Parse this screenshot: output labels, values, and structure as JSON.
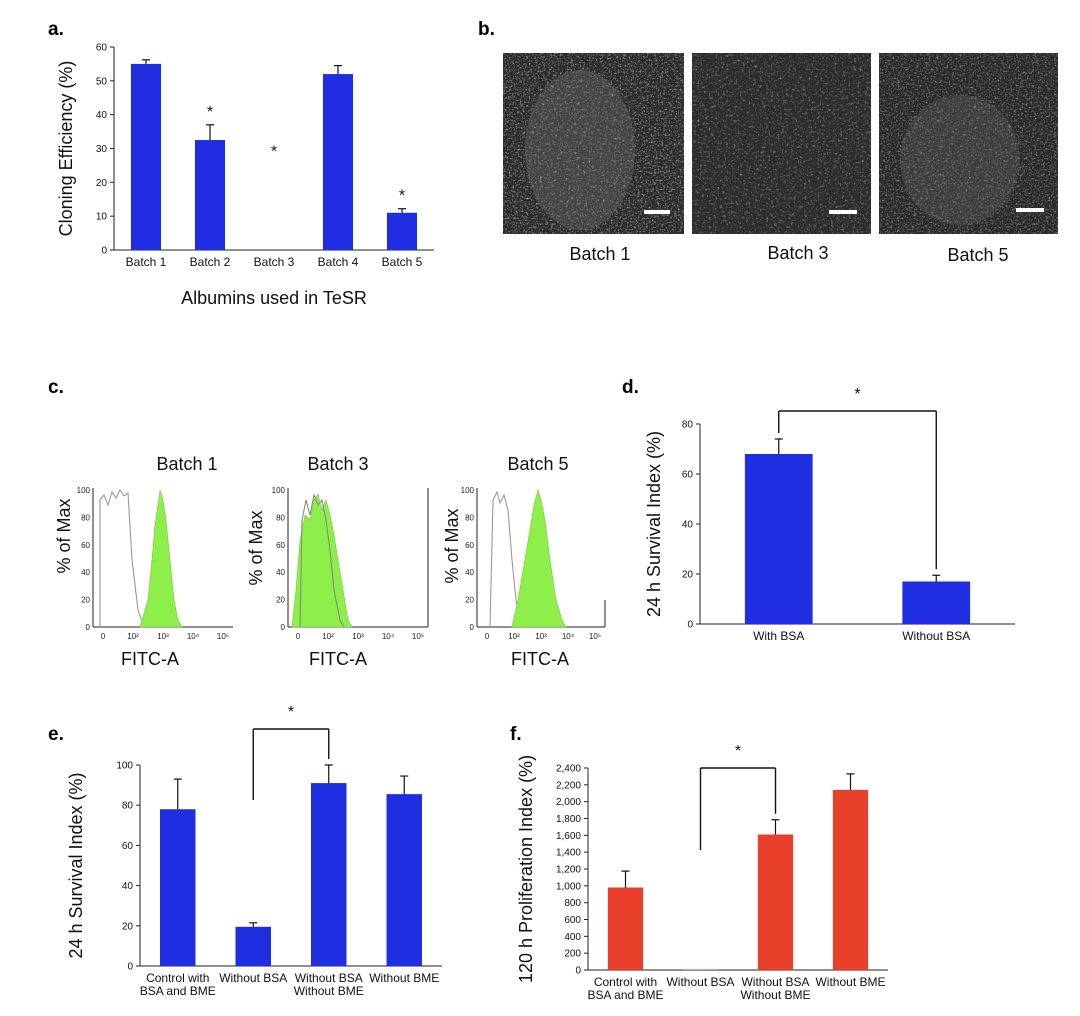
{
  "colors": {
    "blue": "#1f2ee0",
    "red": "#e8402a",
    "green": "#8fef4a",
    "grey": "#888888"
  },
  "panel_labels": {
    "a": "a.",
    "b": "b.",
    "c": "c.",
    "d": "d.",
    "e": "e.",
    "f": "f."
  },
  "micrographs": [
    {
      "label": "Batch 1"
    },
    {
      "label": "Batch 3"
    },
    {
      "label": "Batch 5"
    }
  ],
  "chart_data": [
    {
      "id": "a",
      "type": "bar",
      "title": "",
      "ylabel": "Cloning Efficiency (%)",
      "xlabel": "Albumins used in TeSR",
      "categories": [
        "Batch 1",
        "Batch 2",
        "Batch 3",
        "Batch 4",
        "Batch 5"
      ],
      "values": [
        55,
        32.5,
        0,
        52,
        11
      ],
      "errors": [
        1.2,
        4.5,
        0,
        2.5,
        1.2
      ],
      "significant": [
        false,
        true,
        true,
        false,
        true
      ],
      "ylim": [
        0,
        60
      ],
      "yticks": [
        "0",
        "10",
        "20",
        "30",
        "40",
        "50",
        "60"
      ],
      "color": "#1f2ee0"
    },
    {
      "id": "c",
      "type": "histogram",
      "xlabel": "FITC-A",
      "ylabel": "% of Max",
      "panels": [
        {
          "title": "Batch 1"
        },
        {
          "title": "Batch 3"
        },
        {
          "title": "Batch 5"
        }
      ],
      "yticks": [
        "0",
        "20",
        "40",
        "60",
        "80",
        "100"
      ],
      "xticks": [
        "0",
        "10²",
        "10³",
        "10⁴",
        "10⁵"
      ],
      "series": [
        {
          "name": "control",
          "style": "grey outline"
        },
        {
          "name": "stained",
          "style": "green filled"
        }
      ]
    },
    {
      "id": "d",
      "type": "bar",
      "ylabel": "24 h Survival Index (%)",
      "categories": [
        "With BSA",
        "Without BSA"
      ],
      "values": [
        68,
        17
      ],
      "errors": [
        6,
        2.5
      ],
      "ylim": [
        0,
        80
      ],
      "yticks": [
        "0",
        "20",
        "40",
        "60",
        "80"
      ],
      "color": "#1f2ee0",
      "comparison": {
        "from": 0,
        "to": 1,
        "label": "*"
      }
    },
    {
      "id": "e",
      "type": "bar",
      "ylabel": "24 h Survival Index (%)",
      "categories": [
        [
          "Control with",
          "BSA and BME"
        ],
        [
          "Without BSA"
        ],
        [
          "Without BSA",
          "Without BME"
        ],
        [
          "Without BME"
        ]
      ],
      "values": [
        78,
        19.5,
        91,
        85.5
      ],
      "errors": [
        15,
        2,
        9,
        9
      ],
      "ylim": [
        0,
        100
      ],
      "yticks": [
        "0",
        "20",
        "40",
        "60",
        "80",
        "100"
      ],
      "color": "#1f2ee0",
      "comparison": {
        "from": 1,
        "to": 2,
        "label": "*"
      }
    },
    {
      "id": "f",
      "type": "bar",
      "ylabel": "120 h Proliferation Index (%)",
      "categories": [
        [
          "Control with",
          "BSA and BME"
        ],
        [
          "Without BSA"
        ],
        [
          "Without BSA",
          "Without BME"
        ],
        [
          "Without BME"
        ]
      ],
      "values": [
        980,
        5,
        1610,
        2140
      ],
      "errors": [
        195,
        0,
        175,
        190
      ],
      "ylim": [
        0,
        2400
      ],
      "yticks": [
        "0",
        "200",
        "400",
        "600",
        "800",
        "1,000",
        "1,200",
        "1,400",
        "1,600",
        "1,800",
        "2,000",
        "2,200",
        "2,400"
      ],
      "color": "#e8402a",
      "comparison": {
        "from": 1,
        "to": 2,
        "label": "*"
      }
    }
  ]
}
